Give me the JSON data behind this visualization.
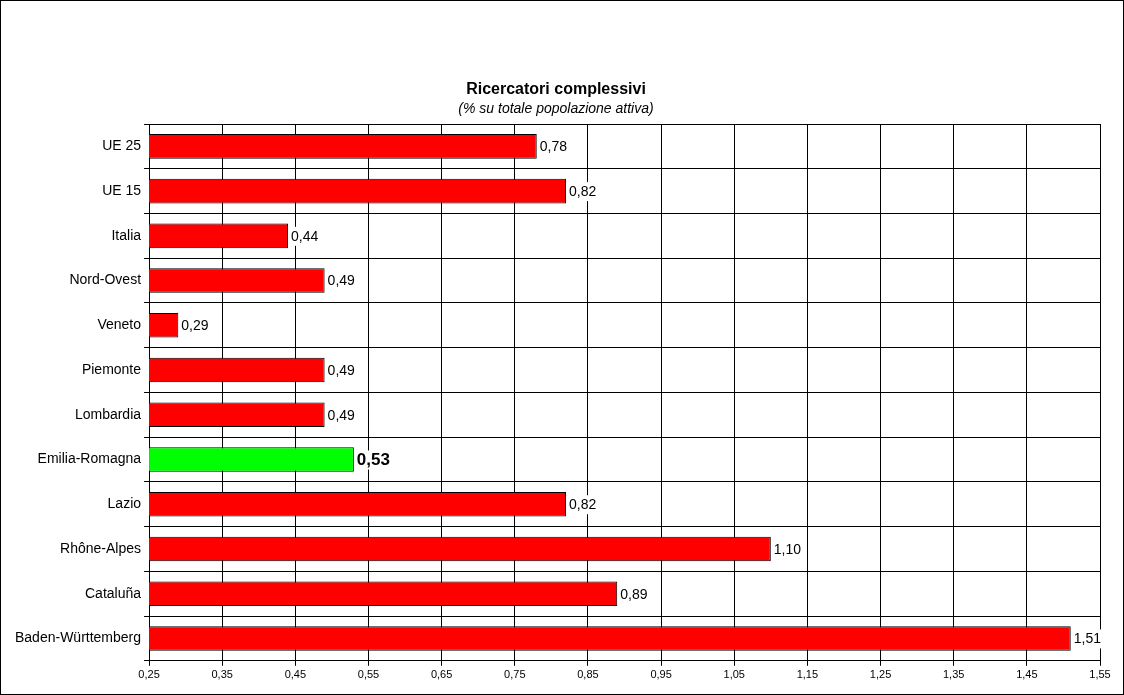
{
  "chart_data": {
    "type": "bar",
    "orientation": "horizontal",
    "title": "Ricercatori complessivi",
    "subtitle": "(% su totale popolazione attiva)",
    "categories": [
      "UE 25",
      "UE 15",
      "Italia",
      "Nord-Ovest",
      "Veneto",
      "Piemonte",
      "Lombardia",
      "Emilia-Romagna",
      "Lazio",
      "Rhône-Alpes",
      "Cataluña",
      "Baden-Württemberg"
    ],
    "values": [
      0.78,
      0.82,
      0.44,
      0.49,
      0.29,
      0.49,
      0.49,
      0.53,
      0.82,
      1.1,
      0.89,
      1.51
    ],
    "value_labels": [
      "0,78",
      "0,82",
      "0,44",
      "0,49",
      "0,29",
      "0,49",
      "0,49",
      "0,53",
      "0,82",
      "1,10",
      "0,89",
      "1,51"
    ],
    "colors": [
      "#ff0000",
      "#ff0000",
      "#ff0000",
      "#ff0000",
      "#ff0000",
      "#ff0000",
      "#ff0000",
      "#00ff00",
      "#ff0000",
      "#ff0000",
      "#ff0000",
      "#ff0000"
    ],
    "xlim": [
      0.25,
      1.55
    ],
    "xticks": [
      {
        "value": 0.25,
        "label": "0,25"
      },
      {
        "value": 0.35,
        "label": "0,35"
      },
      {
        "value": 0.45,
        "label": "0,45"
      },
      {
        "value": 0.55,
        "label": "0,55"
      },
      {
        "value": 0.65,
        "label": "0,65"
      },
      {
        "value": 0.75,
        "label": "0,75"
      },
      {
        "value": 0.85,
        "label": "0,85"
      },
      {
        "value": 0.95,
        "label": "0,95"
      },
      {
        "value": 1.05,
        "label": "1,05"
      },
      {
        "value": 1.15,
        "label": "1,15"
      },
      {
        "value": 1.25,
        "label": "1,25"
      },
      {
        "value": 1.35,
        "label": "1,35"
      },
      {
        "value": 1.45,
        "label": "1,45"
      },
      {
        "value": 1.55,
        "label": "1,55"
      }
    ],
    "grid": true,
    "legend": false
  }
}
